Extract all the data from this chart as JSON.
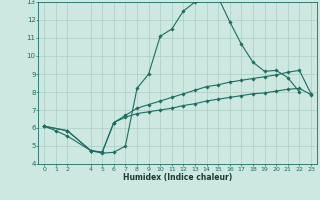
{
  "title": "",
  "xlabel": "Humidex (Indice chaleur)",
  "xlim": [
    -0.5,
    23.5
  ],
  "ylim": [
    4,
    13
  ],
  "xticks": [
    0,
    1,
    2,
    4,
    5,
    6,
    7,
    8,
    9,
    10,
    11,
    12,
    13,
    14,
    15,
    16,
    17,
    18,
    19,
    20,
    21,
    22,
    23
  ],
  "yticks": [
    4,
    5,
    6,
    7,
    8,
    9,
    10,
    11,
    12,
    13
  ],
  "bg_color": "#cce8e0",
  "line_color": "#1a6e62",
  "grid_color": "#aaccc4",
  "line1_x": [
    0,
    1,
    2,
    4,
    5,
    6,
    7,
    8,
    9,
    10,
    11,
    12,
    13,
    14,
    15,
    16,
    17,
    18,
    19,
    20,
    21,
    22
  ],
  "line1_y": [
    6.1,
    5.85,
    5.55,
    4.75,
    4.6,
    4.65,
    5.0,
    8.2,
    9.0,
    11.1,
    11.5,
    12.5,
    13.0,
    13.25,
    13.25,
    11.9,
    10.65,
    9.65,
    9.15,
    9.2,
    8.8,
    8.0
  ],
  "line2_x": [
    0,
    2,
    4,
    5,
    6,
    7,
    8,
    9,
    10,
    11,
    12,
    13,
    14,
    15,
    16,
    17,
    18,
    19,
    20,
    21,
    22,
    23
  ],
  "line2_y": [
    6.1,
    5.85,
    4.75,
    4.65,
    6.3,
    6.7,
    7.1,
    7.3,
    7.5,
    7.7,
    7.9,
    8.1,
    8.3,
    8.4,
    8.55,
    8.65,
    8.75,
    8.85,
    8.95,
    9.1,
    9.2,
    7.9
  ],
  "line3_x": [
    0,
    2,
    4,
    5,
    6,
    7,
    8,
    9,
    10,
    11,
    12,
    13,
    14,
    15,
    16,
    17,
    18,
    19,
    20,
    21,
    22,
    23
  ],
  "line3_y": [
    6.1,
    5.85,
    4.75,
    4.65,
    6.3,
    6.6,
    6.8,
    6.9,
    7.0,
    7.1,
    7.25,
    7.35,
    7.5,
    7.6,
    7.7,
    7.8,
    7.9,
    7.95,
    8.05,
    8.15,
    8.2,
    7.85
  ]
}
